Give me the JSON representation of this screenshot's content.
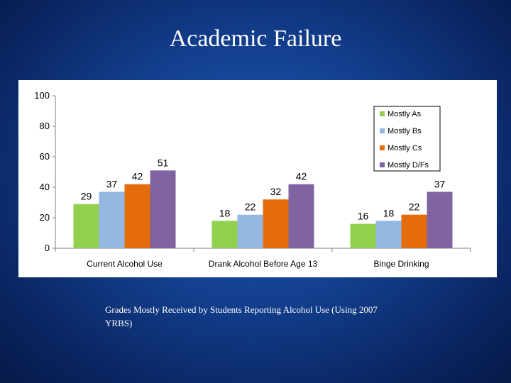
{
  "slide": {
    "title": "Academic Failure",
    "caption": "Grades Mostly Received by Students Reporting Alcohol Use (Using 2007 YRBS)"
  },
  "chart_data": {
    "type": "bar",
    "title": "",
    "xlabel": "",
    "ylabel": "",
    "categories": [
      "Current Alcohol Use",
      "Drank Alcohol Before Age 13",
      "Binge Drinking"
    ],
    "series": [
      {
        "name": "Mostly As",
        "values": [
          29,
          18,
          16
        ],
        "color": "#92d050"
      },
      {
        "name": "Mostly Bs",
        "values": [
          37,
          22,
          18
        ],
        "color": "#95b8e3"
      },
      {
        "name": "Mostly Cs",
        "values": [
          42,
          32,
          22
        ],
        "color": "#e46c0a"
      },
      {
        "name": "Mostly D/Fs",
        "values": [
          51,
          42,
          37
        ],
        "color": "#8064a2"
      }
    ],
    "ylim": [
      0,
      100
    ],
    "yticks": [
      0,
      20,
      40,
      60,
      80,
      100
    ],
    "grid": false,
    "legend_position": "top-right"
  }
}
